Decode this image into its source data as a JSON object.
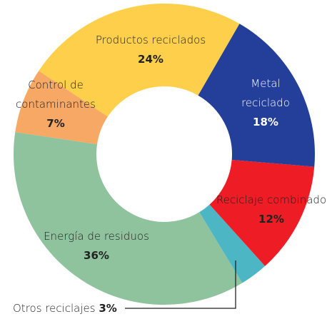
{
  "chart_data": {
    "type": "pie",
    "categories": [
      "Metal reciclado",
      "Reciclaje combinado",
      "Otros reciclajes",
      "Energía de residuos",
      "Control de contaminantes",
      "Productos reciclados"
    ],
    "values": [
      18,
      12,
      3,
      36,
      7,
      24
    ],
    "value_labels": [
      "18%",
      "12%",
      "3%",
      "36%",
      "7%",
      "24%"
    ],
    "colors": [
      "#233f99",
      "#ee1c25",
      "#4db6c4",
      "#8fc39e",
      "#f7a864",
      "#fdcf4a"
    ]
  }
}
